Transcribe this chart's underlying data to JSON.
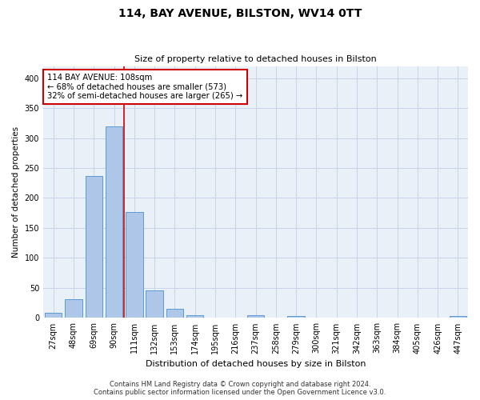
{
  "title": "114, BAY AVENUE, BILSTON, WV14 0TT",
  "subtitle": "Size of property relative to detached houses in Bilston",
  "xlabel": "Distribution of detached houses by size in Bilston",
  "ylabel": "Number of detached properties",
  "categories": [
    "27sqm",
    "48sqm",
    "69sqm",
    "90sqm",
    "111sqm",
    "132sqm",
    "153sqm",
    "174sqm",
    "195sqm",
    "216sqm",
    "237sqm",
    "258sqm",
    "279sqm",
    "300sqm",
    "321sqm",
    "342sqm",
    "363sqm",
    "384sqm",
    "405sqm",
    "426sqm",
    "447sqm"
  ],
  "values": [
    8,
    31,
    237,
    320,
    176,
    46,
    15,
    5,
    0,
    0,
    5,
    0,
    3,
    0,
    0,
    0,
    0,
    0,
    0,
    0,
    3
  ],
  "bar_color": "#aec6e8",
  "bar_edge_color": "#5b9bd5",
  "annotation_line1": "114 BAY AVENUE: 108sqm",
  "annotation_line2": "← 68% of detached houses are smaller (573)",
  "annotation_line3": "32% of semi-detached houses are larger (265) →",
  "annotation_box_color": "#ffffff",
  "annotation_box_edge_color": "#cc0000",
  "vline_color": "#cc0000",
  "grid_color": "#c8d4e8",
  "background_color": "#eaf0f8",
  "footer1": "Contains HM Land Registry data © Crown copyright and database right 2024.",
  "footer2": "Contains public sector information licensed under the Open Government Licence v3.0.",
  "ylim": [
    0,
    420
  ],
  "yticks": [
    0,
    50,
    100,
    150,
    200,
    250,
    300,
    350,
    400
  ],
  "vline_x": 3.5
}
